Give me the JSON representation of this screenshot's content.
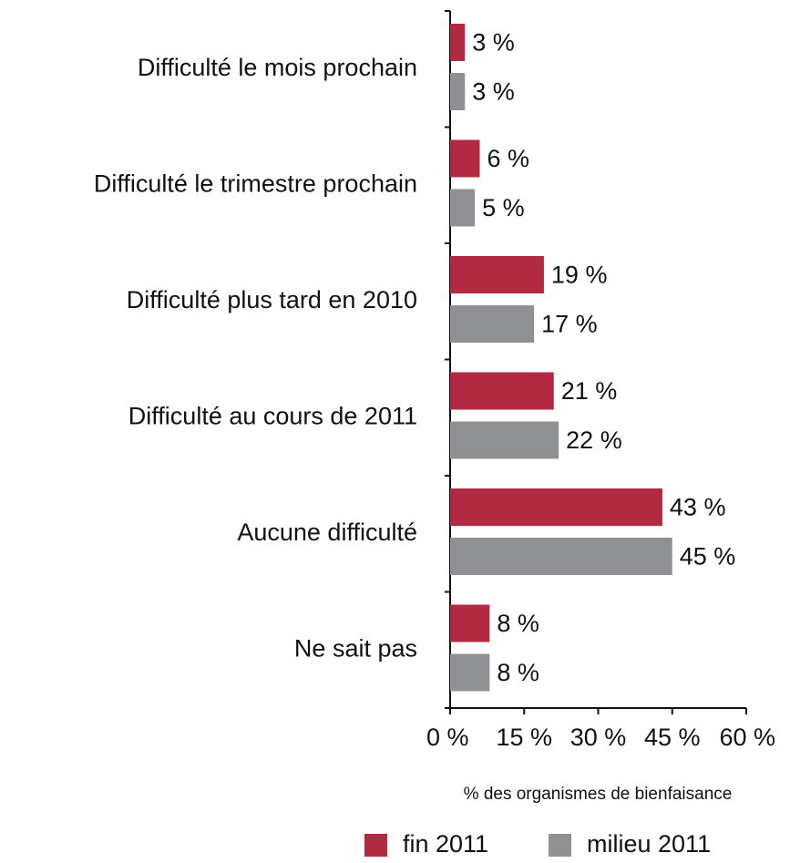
{
  "chart_data": {
    "type": "bar",
    "orientation": "horizontal",
    "categories": [
      "Difficulté le mois prochain",
      "Difficulté le trimestre prochain",
      "Difficulté plus tard en 2010",
      "Difficulté au cours de 2011",
      "Aucune difficulté",
      "Ne sait pas"
    ],
    "series": [
      {
        "name": "fin 2011",
        "color": "#b22a41",
        "values": [
          3,
          6,
          19,
          21,
          43,
          8
        ],
        "value_labels": [
          "3 %",
          "6 %",
          "19 %",
          "21 %",
          "43 %",
          "8 %"
        ]
      },
      {
        "name": "milieu 2011",
        "color": "#8e9093",
        "values": [
          3,
          5,
          17,
          22,
          45,
          8
        ],
        "value_labels": [
          "3 %",
          "5 %",
          "17 %",
          "22 %",
          "45 %",
          "8 %"
        ]
      }
    ],
    "xlim": [
      0,
      60
    ],
    "xticks": [
      {
        "value": 0,
        "label": "0 %"
      },
      {
        "value": 15,
        "label": "15 %"
      },
      {
        "value": 30,
        "label": "30 %"
      },
      {
        "value": 45,
        "label": "45 %"
      },
      {
        "value": 60,
        "label": "60 %"
      }
    ],
    "xlabel": "% des organismes de bienfaisance",
    "legend": "bottom"
  }
}
